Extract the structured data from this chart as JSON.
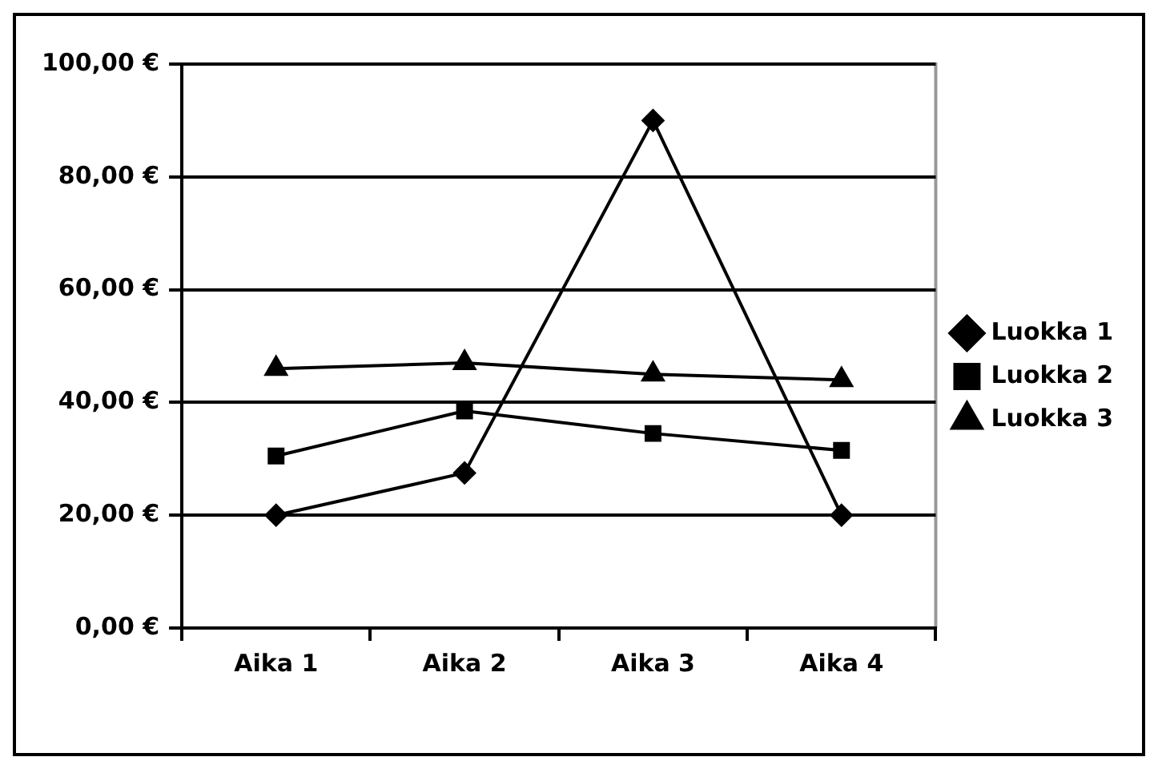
{
  "chart_data": {
    "type": "line",
    "categories": [
      "Aika 1",
      "Aika 2",
      "Aika 3",
      "Aika 4"
    ],
    "series": [
      {
        "name": "Luokka 1",
        "color": "#000000",
        "marker": "diamond",
        "values": [
          20,
          27.5,
          90,
          20
        ]
      },
      {
        "name": "Luokka 2",
        "color": "#000000",
        "marker": "square",
        "values": [
          30.5,
          38.5,
          34.5,
          31.5
        ]
      },
      {
        "name": "Luokka 3",
        "color": "#000000",
        "marker": "triangle",
        "values": [
          46,
          47,
          45,
          44
        ]
      }
    ],
    "ylim": [
      0,
      100
    ],
    "yticks": [
      {
        "value": 0,
        "label": "0,00 €"
      },
      {
        "value": 20,
        "label": "20,00 €"
      },
      {
        "value": 40,
        "label": "40,00 €"
      },
      {
        "value": 60,
        "label": "60,00 €"
      },
      {
        "value": 80,
        "label": "80,00 €"
      },
      {
        "value": 100,
        "label": "100,00 €"
      }
    ],
    "grid": "y",
    "legend": "right",
    "line_style": "solid"
  }
}
